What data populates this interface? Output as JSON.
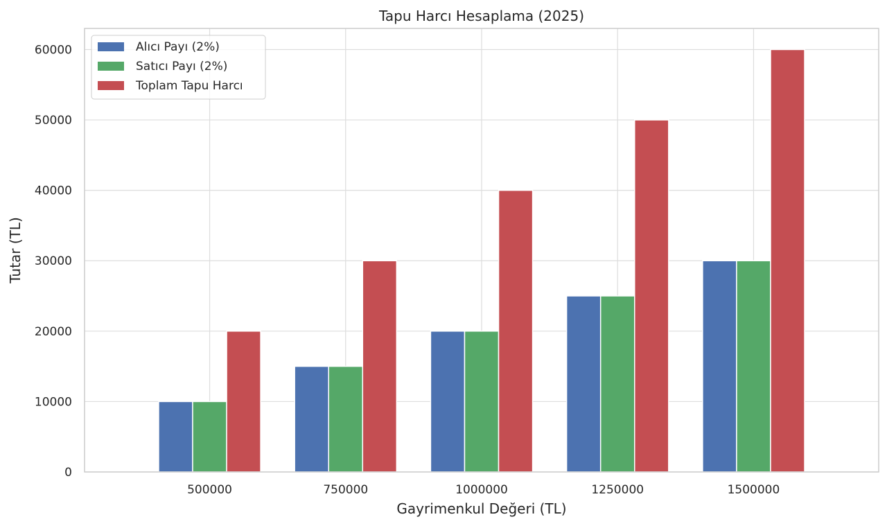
{
  "chart_data": {
    "type": "bar",
    "title": "Tapu Harcı Hesaplama (2025)",
    "xlabel": "Gayrimenkul Değeri (TL)",
    "ylabel": "Tutar (TL)",
    "categories": [
      "500000",
      "750000",
      "1000000",
      "1250000",
      "1500000"
    ],
    "series": [
      {
        "name": "Alıcı Payı (2%)",
        "color": "#4c72b0",
        "values": [
          10000,
          15000,
          20000,
          25000,
          30000
        ]
      },
      {
        "name": "Satıcı Payı (2%)",
        "color": "#55a868",
        "values": [
          10000,
          15000,
          20000,
          25000,
          30000
        ]
      },
      {
        "name": "Toplam Tapu Harcı",
        "color": "#c44e52",
        "values": [
          20000,
          30000,
          40000,
          50000,
          60000
        ]
      }
    ],
    "yticks": [
      0,
      10000,
      20000,
      30000,
      40000,
      50000,
      60000
    ],
    "ylim": [
      0,
      63000
    ],
    "grid": true,
    "legend_position": "top-left"
  }
}
